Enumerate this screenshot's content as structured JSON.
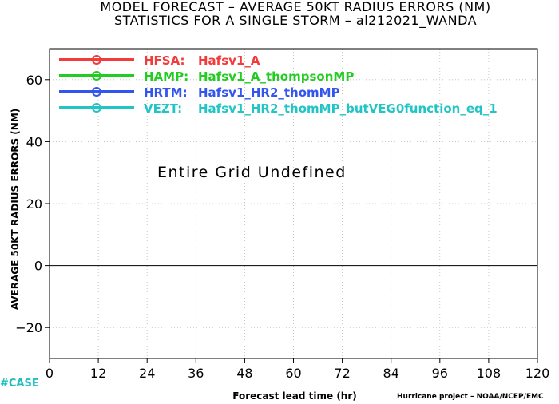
{
  "chart_data": {
    "type": "line",
    "title": "MODEL FORECAST – AVERAGE 50KT RADIUS ERRORS (NM)",
    "subtitle": "STATISTICS FOR A SINGLE STORM – al212021_WANDA",
    "xlabel": "Forecast lead time (hr)",
    "ylabel": "AVERAGE 50KT RADIUS ERRORS (NM)",
    "xlim": [
      0,
      120
    ],
    "ylim": [
      -30,
      70
    ],
    "x_ticks": [
      "0",
      "12",
      "24",
      "36",
      "48",
      "60",
      "72",
      "84",
      "96",
      "108",
      "120"
    ],
    "y_ticks": [
      "−20",
      "0",
      "20",
      "40",
      "60"
    ],
    "grid": true,
    "legend_position": "top-left",
    "series": [
      {
        "name": "HFSA:",
        "label": "Hafsv1_A",
        "color": "#f23b3b",
        "values": []
      },
      {
        "name": "HAMP:",
        "label": "Hafsv1_A_thompsonMP",
        "color": "#22cc22",
        "values": []
      },
      {
        "name": "HRTM:",
        "label": "Hafsv1_HR2_thomMP",
        "color": "#3355ee",
        "values": []
      },
      {
        "name": "VEZT:",
        "label": "Hafsv1_HR2_thomMP_butVEG0function_eq_1",
        "color": "#22c4c4",
        "values": []
      }
    ],
    "annotation": "Entire Grid Undefined"
  },
  "footer": {
    "case_label": "#CASE",
    "credit": "Hurricane project – NOAA/NCEP/EMC"
  }
}
